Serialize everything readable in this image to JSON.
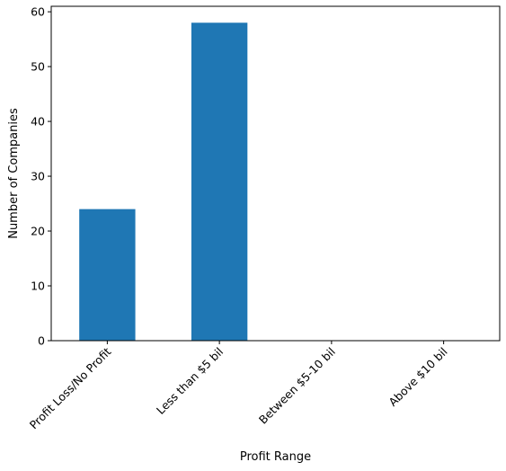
{
  "chart_data": {
    "type": "bar",
    "title": "",
    "xlabel": "Profit Range",
    "ylabel": "Number of Companies",
    "categories": [
      "Profit Loss/No Profit",
      "Less than $5 bil",
      "Between $5-10 bil",
      "Above $10 bil"
    ],
    "values": [
      24,
      58,
      0,
      0
    ],
    "ylim": [
      0,
      61
    ],
    "yticks": [
      0,
      10,
      20,
      30,
      40,
      50,
      60
    ],
    "bar_color": "#1f77b4",
    "grid": false,
    "legend": "none",
    "x_tick_rotation_deg": 45
  }
}
